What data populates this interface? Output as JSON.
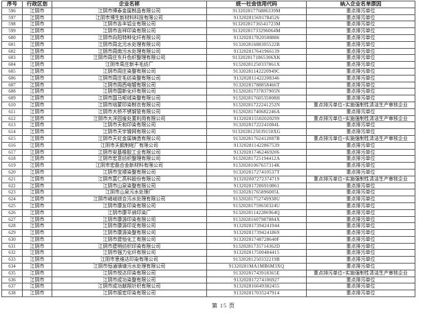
{
  "table": {
    "headers": [
      "序号",
      "行政区划",
      "企业名称",
      "统一社会信用代码",
      "纳入企业名单原因"
    ],
    "rows": [
      {
        "no": "596",
        "district": "江阴市",
        "company": "江阴市博泰金属制品有限公司",
        "code": "91320281776886339M",
        "reason": "重点排污单位"
      },
      {
        "no": "597",
        "district": "江阴市",
        "company": "江阴市博生新材料科技有限公司",
        "code": "913202815691784526",
        "reason": "重点排污单位"
      },
      {
        "no": "598",
        "district": "江阴市",
        "company": "江阴市吉丰铝业有限公司",
        "code": "91320281736541723M",
        "reason": "重点排污单位"
      },
      {
        "no": "599",
        "district": "江阴市",
        "company": "江阴市吉祥印染有限公司",
        "code": "91320281733296064M",
        "reason": "重点排污单位"
      },
      {
        "no": "600",
        "district": "江阴市",
        "company": "江阴市向阳特种化纤有限公司",
        "code": "913202817820508886",
        "reason": "重点排污单位"
      },
      {
        "no": "601",
        "district": "江阴市",
        "company": "江阴市周北污水处理有限公司",
        "code": "91320281688305522B",
        "reason": "重点排污单位"
      },
      {
        "no": "602",
        "district": "江阴市",
        "company": "江阴市周南污水处理有限公司",
        "code": "913202817641966139",
        "reason": "重点排污单位"
      },
      {
        "no": "603",
        "district": "江阴市",
        "company": "江阴市周庄东升色织整理有限公司",
        "code": "9132028171865306XK",
        "reason": "重点排污单位"
      },
      {
        "no": "604",
        "district": "江阴市",
        "company": "江阴市周庄新丰毛纺厂",
        "code": "91320281250337861X",
        "reason": "重点排污单位"
      },
      {
        "no": "605",
        "district": "江阴市",
        "company": "江阴市周庄染整有限公司",
        "code": "91320281142220949C",
        "reason": "重点排污单位"
      },
      {
        "no": "606",
        "district": "江阴市",
        "company": "江阴市周庄毛纺染整有限公司",
        "code": "913202811422208346",
        "reason": "重点排污单位"
      },
      {
        "no": "607",
        "district": "江阴市",
        "company": "江阴市周西电镀有限公司",
        "code": "91320281788858466T",
        "reason": "重点排污单位"
      },
      {
        "no": "608",
        "district": "江阴市",
        "company": "江阴市国新化纤有限公司",
        "code": "91320281737837905N",
        "reason": "重点排污单位"
      },
      {
        "no": "609",
        "district": "江阴市",
        "company": "江阴市国马呢绒染整有限公司",
        "code": "91320281760535008H",
        "reason": "重点排污单位"
      },
      {
        "no": "610",
        "district": "江阴市",
        "company": "江阴市培蒙印染制衣有限公司",
        "code": "91320281722241252N",
        "reason": "重点排污单位+实施强制性清洁生产审核企业"
      },
      {
        "no": "611",
        "district": "江阴市",
        "company": "江阴市大桥不锈钢管有限公司",
        "code": "91320281740682246A",
        "reason": "重点排污单位"
      },
      {
        "no": "612",
        "district": "江阴市",
        "company": "江阴市大洋固废处置利用有限公司",
        "code": "913202815502020299",
        "reason": "重点排污单位+实施强制性清洁生产审核企业"
      },
      {
        "no": "613",
        "district": "江阴市",
        "company": "江阴市天和印染有限公司",
        "code": "91320281722241084L",
        "reason": "重点排污单位"
      },
      {
        "no": "614",
        "district": "江阴市",
        "company": "江阴市天宇镍网有限公司",
        "code": "9132028125039150XG",
        "reason": "重点排污单位"
      },
      {
        "no": "615",
        "district": "江阴市",
        "company": "江阴市天虹金属铸造有限公司",
        "code": "91320281762412087B",
        "reason": "重点排污单位+实施强制性清洁生产审核企业"
      },
      {
        "no": "616",
        "district": "江阴市",
        "company": "江阴市天鹅制呢厂有限公司",
        "code": "913202811422867539",
        "reason": "重点排污单位"
      },
      {
        "no": "617",
        "district": "江阴市",
        "company": "江阴市安基橡胶工业有限公司",
        "code": "913202817462469206",
        "reason": "重点排污单位"
      },
      {
        "no": "618",
        "district": "江阴市",
        "company": "江阴市宏意纺织整理有限公司",
        "code": "91320281725194412A",
        "reason": "重点排污单位"
      },
      {
        "no": "619",
        "district": "江阴市",
        "company": "江阴市宏磊合金新材料有限公司",
        "code": "91320281067657314K",
        "reason": "重点排污单位"
      },
      {
        "no": "620",
        "district": "江阴市",
        "company": "江阴市宝顺染整有限公司",
        "code": "91320281727410537T",
        "reason": "重点排污单位"
      },
      {
        "no": "621",
        "district": "江阴市",
        "company": "江阴市富仁高科股份有限公司",
        "code": "913202007272374719",
        "reason": "重点排污单位+实施强制性清洁生产审核企业"
      },
      {
        "no": "622",
        "district": "江阴市",
        "company": "江阴市山泉染整有限公司",
        "code": "913202817286910861",
        "reason": "重点排污单位"
      },
      {
        "no": "623",
        "district": "江阴市",
        "company": "江阴市山泉污水处理厂",
        "code": "91320281765896005L",
        "reason": "重点排污单位"
      },
      {
        "no": "624",
        "district": "江阴市",
        "company": "江阴市峭岐综合污水处理有限公司",
        "code": "91320281752749938U",
        "reason": "重点排污单位"
      },
      {
        "no": "625",
        "district": "江阴市",
        "company": "江阴市康友印染有限公司",
        "code": "91320281759650324U",
        "reason": "重点排污单位"
      },
      {
        "no": "626",
        "district": "江阴市",
        "company": "江阴市康平纳印染厂",
        "code": "91320281142286964Q",
        "reason": "重点排污单位"
      },
      {
        "no": "627",
        "district": "江阴市",
        "company": "江阴市康源印染有限公司",
        "code": "91320281607987884X",
        "reason": "重点排污单位"
      },
      {
        "no": "628",
        "district": "江阴市",
        "company": "江阴市康源印花有限公司",
        "code": "913202817394241944",
        "reason": "重点排污单位"
      },
      {
        "no": "629",
        "district": "江阴市",
        "company": "江阴市康源染整有限公司",
        "code": "913202817394241869",
        "reason": "重点排污单位"
      },
      {
        "no": "630",
        "district": "江阴市",
        "company": "江阴市建恒化工有限公司",
        "code": "91320281748728640F",
        "reason": "重点排污单位"
      },
      {
        "no": "631",
        "district": "江阴市",
        "company": "江阴市建明纺织印染有限公司",
        "code": "91320281735714362D",
        "reason": "重点排污单位"
      },
      {
        "no": "632",
        "district": "江阴市",
        "company": "江阴市强力化纤有限公司",
        "code": "913202817500484415",
        "reason": "重点排污单位"
      },
      {
        "no": "633",
        "district": "江阴市",
        "company": "江阴市思维达印染有限公司",
        "code": "91320281250332219B",
        "reason": "重点排污单位"
      },
      {
        "no": "634",
        "district": "江阴市",
        "company": "江阴市恒通璜塘污水处理有限公司",
        "code": "91320281MA1MB6M3XQ",
        "reason": "重点排污单位"
      },
      {
        "no": "635",
        "district": "江阴市",
        "company": "江阴市悦达印染有限公司",
        "code": "91320281743918365E",
        "reason": "重点排污单位+实施强制性清洁生产审核企业"
      },
      {
        "no": "636",
        "district": "江阴市",
        "company": "江阴市成功染整有限公司",
        "code": "913202817274106927",
        "reason": "重点排污单位"
      },
      {
        "no": "637",
        "district": "江阴市",
        "company": "江阴市成功献翔针织有限公司",
        "code": "913202816649382455",
        "reason": "重点排污单位"
      },
      {
        "no": "638",
        "district": "江阴市",
        "company": "江阴市振宏印染有限公司",
        "code": "913202817035247914",
        "reason": "重点排污单位"
      }
    ]
  },
  "footer": {
    "page_label": "第 15 页"
  },
  "colors": {
    "border": "#4f4f4f",
    "text": "#1f1f1f",
    "background": "#ffffff"
  }
}
